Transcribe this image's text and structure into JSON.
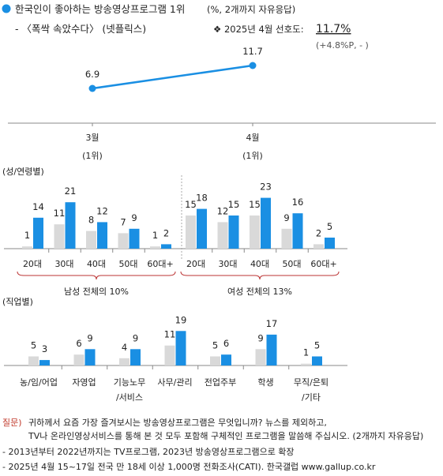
{
  "header": {
    "title": "한국인이 좋아하는 방송영상프로그램 1위",
    "title_unit": "(%, 2개까지 자유응답)",
    "program": "- 〈폭싹 속았수다〉 (넷플릭스)",
    "pref_label": "❖ 2025년 4월 선호도:",
    "pref_value": "11.7%",
    "pref_change": "(+4.8%P, - )"
  },
  "colors": {
    "blue": "#1a8fe3",
    "gray": "#d9d9d9",
    "marker": "#1a8fe3"
  },
  "chart_data": [
    {
      "type": "line",
      "x": [
        "3월",
        "4월"
      ],
      "x_sub": [
        "(1위)",
        "(1위)"
      ],
      "values": [
        6.9,
        11.7
      ],
      "value_labels": [
        "6.9",
        "11.7"
      ]
    },
    {
      "type": "bar",
      "label": "(성/연령별)",
      "groups": [
        {
          "summary": "남성 전체의 10%",
          "categories": [
            "20대",
            "30대",
            "40대",
            "50대",
            "60대+"
          ],
          "series": [
            {
              "values": [
                1,
                11,
                8,
                7,
                1
              ]
            },
            {
              "values": [
                14,
                21,
                12,
                9,
                2
              ]
            }
          ]
        },
        {
          "summary": "여성 전체의 13%",
          "categories": [
            "20대",
            "30대",
            "40대",
            "50대",
            "60대+"
          ],
          "series": [
            {
              "values": [
                15,
                12,
                15,
                9,
                2
              ]
            },
            {
              "values": [
                18,
                15,
                23,
                16,
                5
              ]
            }
          ]
        }
      ]
    },
    {
      "type": "bar",
      "label": "(직업별)",
      "categories": [
        "농/임/어업",
        "자영업",
        "기능노무|/서비스",
        "사무/관리",
        "전업주부",
        "학생",
        "무직/은퇴|/기타"
      ],
      "series": [
        {
          "values": [
            5,
            6,
            4,
            11,
            5,
            9,
            1
          ]
        },
        {
          "values": [
            3,
            9,
            9,
            19,
            6,
            17,
            5
          ]
        }
      ]
    }
  ],
  "footer": {
    "q_label": "질문)",
    "q_line1": "귀하께서 요즘 가장 즐겨보시는 방송영상프로그램은 무엇입니까? 뉴스를 제외하고,",
    "q_line2": "TV나 온라인영상서비스를 통해 본 것 모두 포함해 구체적인 프로그램을 말씀해 주십시오. (2개까지 자유응답)",
    "note1": "- 2013년부터 2022년까지는 TV프로그램, 2023년 방송영상프로그램으로 확장",
    "note2": "- 2025년 4월 15~17일 전국 만 18세 이상 1,000명 전화조사(CATI). 한국갤럽 www.gallup.co.kr"
  }
}
